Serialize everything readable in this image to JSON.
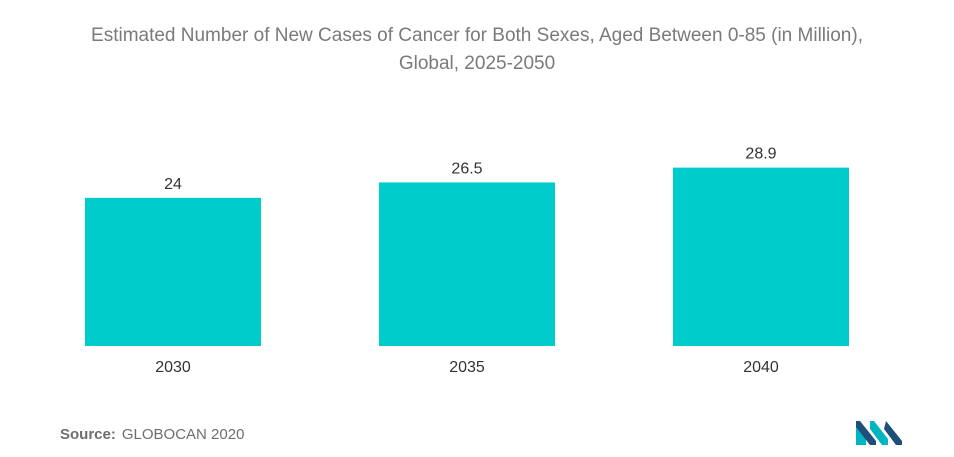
{
  "chart_data": {
    "type": "bar",
    "title_lines": [
      "Estimated Number of New Cases of Cancer for Both Sexes, Aged Between 0-85 (in Million),",
      "Global, 2025-2050"
    ],
    "categories": [
      "2030",
      "2035",
      "2040"
    ],
    "values": [
      24,
      26.5,
      28.9
    ],
    "value_labels": [
      "24",
      "26.5",
      "28.9"
    ],
    "xlabel": "",
    "ylabel": "",
    "ylim": [
      0,
      29
    ],
    "grid": false,
    "legend": "none",
    "bar_color": "#00cccc"
  },
  "source": {
    "label": "Source:",
    "text": "GLOBOCAN 2020"
  },
  "logo": {
    "icon": "mordor-intelligence-logo-icon",
    "colors": [
      "#1f4e79",
      "#00b5c2"
    ]
  }
}
